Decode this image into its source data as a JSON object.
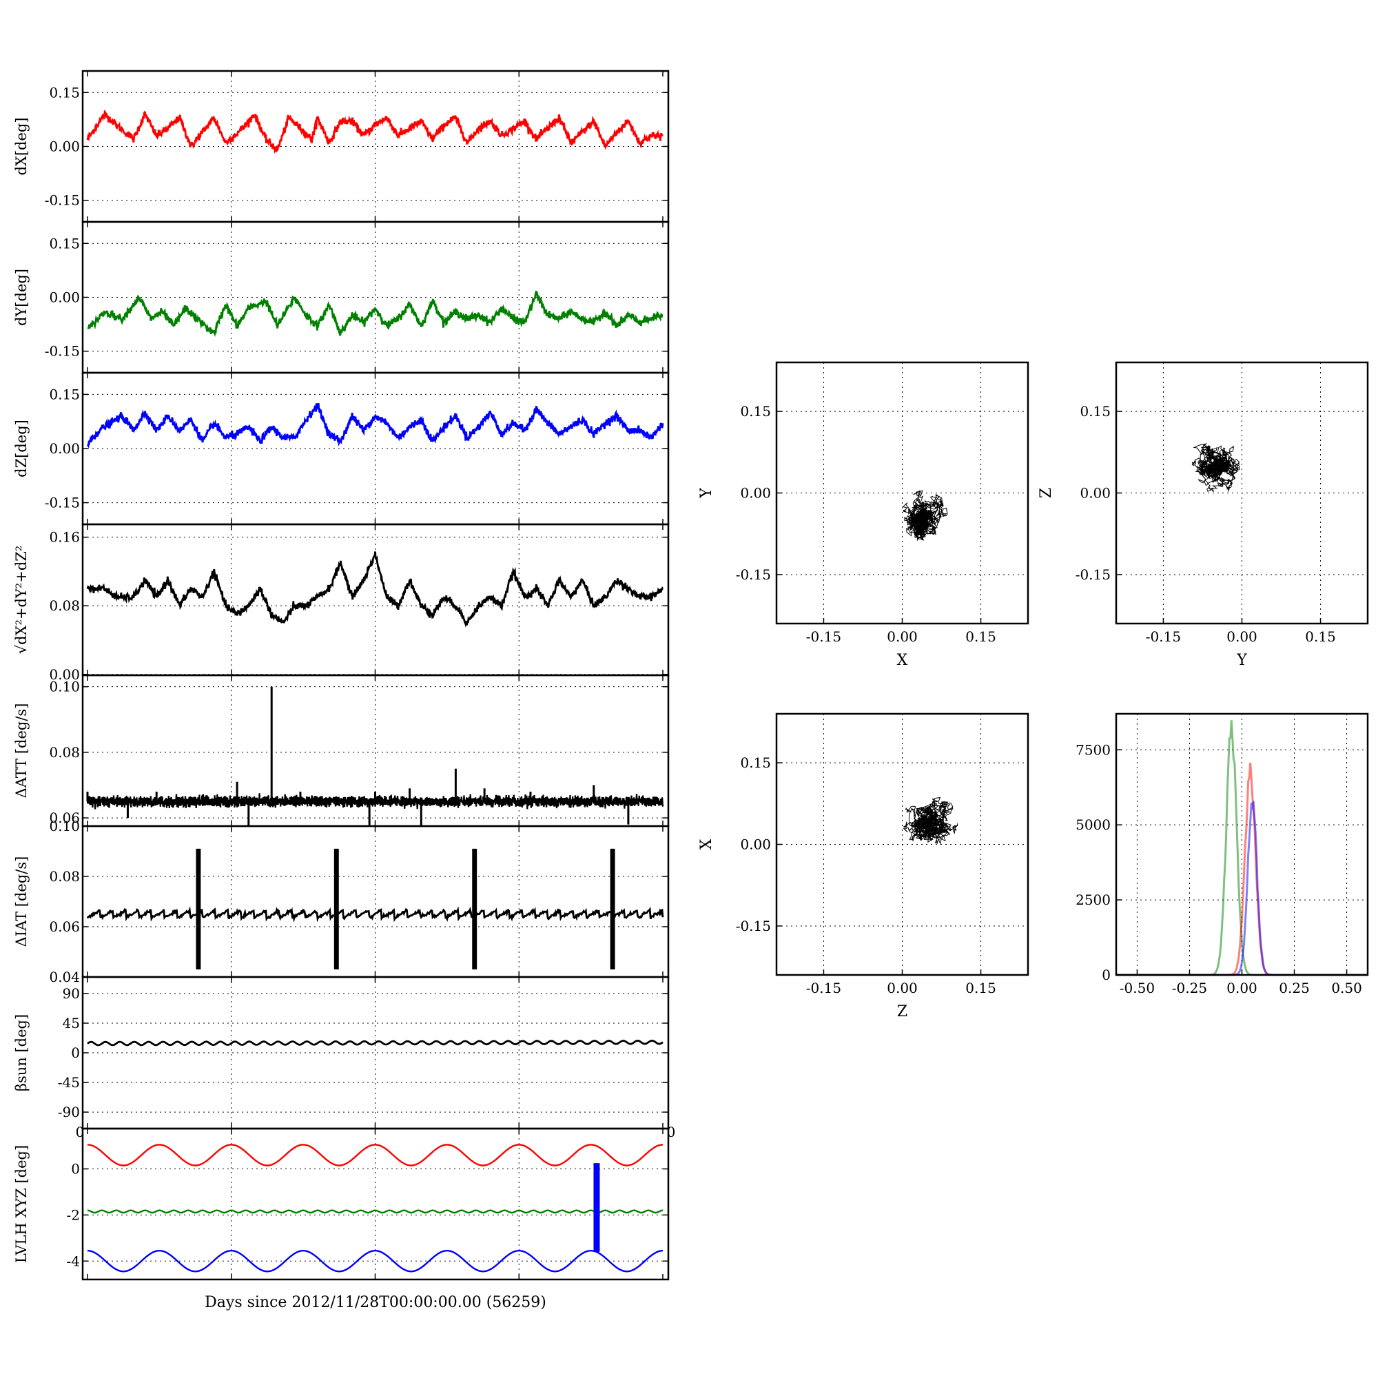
{
  "chart_data": [
    {
      "id": "dx",
      "type": "line",
      "ylabel": "dX[deg]",
      "ylim": [
        -0.21,
        0.21
      ],
      "yticks": [
        "0.15",
        "0.00",
        "-0.15"
      ],
      "ytickvals": [
        0.15,
        0.0,
        -0.15
      ],
      "color": "#ff0000",
      "x": [
        0,
        3,
        5,
        8,
        10,
        12,
        14,
        16,
        18,
        20,
        22,
        24,
        27,
        29,
        31,
        33,
        35,
        37,
        39,
        40,
        42,
        44,
        46,
        48,
        50,
        52,
        54,
        56,
        58,
        60,
        62,
        64,
        66,
        68,
        70,
        72,
        74,
        76,
        78,
        80,
        82,
        84,
        86,
        88,
        90,
        92,
        94,
        96,
        98,
        100
      ],
      "values": [
        0.02,
        0.09,
        0.06,
        0.02,
        0.09,
        0.03,
        0.05,
        0.08,
        0.0,
        0.04,
        0.08,
        0.01,
        0.05,
        0.09,
        0.02,
        -0.01,
        0.08,
        0.05,
        0.02,
        0.08,
        0.01,
        0.07,
        0.07,
        0.03,
        0.06,
        0.08,
        0.03,
        0.05,
        0.07,
        0.02,
        0.06,
        0.08,
        0.01,
        0.05,
        0.07,
        0.03,
        0.05,
        0.07,
        0.02,
        0.05,
        0.08,
        0.01,
        0.04,
        0.07,
        0.0,
        0.04,
        0.07,
        0.01,
        0.03,
        0.03
      ]
    },
    {
      "id": "dy",
      "type": "line",
      "ylabel": "dY[deg]",
      "ylim": [
        -0.21,
        0.21
      ],
      "yticks": [
        "0.15",
        "0.00",
        "-0.15"
      ],
      "ytickvals": [
        0.15,
        0.0,
        -0.15
      ],
      "color": "#008000",
      "x": [
        0,
        3,
        6,
        9,
        11,
        13,
        15,
        17,
        19,
        22,
        24,
        26,
        28,
        31,
        33,
        36,
        38,
        40,
        42,
        44,
        46,
        48,
        50,
        52,
        54,
        56,
        58,
        60,
        62,
        64,
        66,
        68,
        70,
        72,
        74,
        76,
        78,
        80,
        82,
        84,
        86,
        88,
        90,
        92,
        94,
        96,
        98,
        100
      ],
      "values": [
        -0.09,
        -0.04,
        -0.06,
        0.0,
        -0.06,
        -0.04,
        -0.08,
        -0.03,
        -0.06,
        -0.1,
        -0.02,
        -0.08,
        -0.03,
        -0.01,
        -0.08,
        0.0,
        -0.05,
        -0.08,
        -0.02,
        -0.1,
        -0.05,
        -0.07,
        -0.03,
        -0.08,
        -0.06,
        -0.02,
        -0.08,
        -0.01,
        -0.07,
        -0.04,
        -0.06,
        -0.05,
        -0.07,
        -0.03,
        -0.06,
        -0.07,
        0.01,
        -0.05,
        -0.06,
        -0.04,
        -0.06,
        -0.07,
        -0.04,
        -0.08,
        -0.05,
        -0.07,
        -0.06,
        -0.05
      ]
    },
    {
      "id": "dz",
      "type": "line",
      "ylabel": "dZ[deg]",
      "ylim": [
        -0.21,
        0.21
      ],
      "yticks": [
        "0.15",
        "0.00",
        "-0.15"
      ],
      "ytickvals": [
        0.15,
        0.0,
        -0.15
      ],
      "color": "#0000ff",
      "x": [
        0,
        2,
        4,
        6,
        8,
        10,
        12,
        14,
        16,
        18,
        20,
        22,
        24,
        26,
        28,
        30,
        32,
        34,
        36,
        38,
        40,
        42,
        44,
        46,
        48,
        50,
        52,
        54,
        56,
        58,
        60,
        62,
        64,
        66,
        68,
        70,
        72,
        74,
        76,
        78,
        80,
        82,
        84,
        86,
        88,
        90,
        92,
        94,
        96,
        98,
        100
      ],
      "values": [
        0.01,
        0.05,
        0.07,
        0.09,
        0.05,
        0.1,
        0.05,
        0.09,
        0.05,
        0.08,
        0.02,
        0.07,
        0.03,
        0.04,
        0.06,
        0.02,
        0.06,
        0.03,
        0.03,
        0.08,
        0.12,
        0.04,
        0.02,
        0.09,
        0.05,
        0.09,
        0.07,
        0.03,
        0.06,
        0.08,
        0.02,
        0.06,
        0.09,
        0.03,
        0.06,
        0.1,
        0.04,
        0.07,
        0.05,
        0.11,
        0.07,
        0.04,
        0.06,
        0.08,
        0.04,
        0.07,
        0.09,
        0.05,
        0.05,
        0.03,
        0.07
      ]
    },
    {
      "id": "r",
      "type": "line",
      "ylabel": "sqrt(dX^2+dY^2+dZ^2)",
      "ylim": [
        -0.001,
        0.175
      ],
      "yticks": [
        "0.16",
        "0.08",
        "0.00"
      ],
      "ytickvals": [
        0.16,
        0.08,
        0.0
      ],
      "color": "#000000",
      "x": [
        0,
        3,
        5,
        8,
        10,
        12,
        14,
        16,
        18,
        20,
        22,
        24,
        26,
        28,
        30,
        32,
        34,
        36,
        38,
        40,
        42,
        44,
        46,
        48,
        50,
        52,
        54,
        56,
        58,
        60,
        62,
        64,
        66,
        68,
        70,
        72,
        74,
        76,
        78,
        80,
        82,
        84,
        86,
        88,
        90,
        92,
        94,
        96,
        98,
        100
      ],
      "values": [
        0.1,
        0.1,
        0.09,
        0.09,
        0.11,
        0.09,
        0.11,
        0.08,
        0.1,
        0.09,
        0.12,
        0.08,
        0.07,
        0.08,
        0.1,
        0.07,
        0.06,
        0.08,
        0.08,
        0.09,
        0.1,
        0.13,
        0.09,
        0.11,
        0.14,
        0.09,
        0.08,
        0.11,
        0.08,
        0.07,
        0.09,
        0.08,
        0.06,
        0.08,
        0.09,
        0.08,
        0.12,
        0.09,
        0.1,
        0.08,
        0.11,
        0.09,
        0.11,
        0.08,
        0.09,
        0.11,
        0.1,
        0.09,
        0.09,
        0.1
      ]
    },
    {
      "id": "datt",
      "type": "line",
      "ylabel": "ΔATT [deg/s]",
      "ylim": [
        0.0575,
        0.1035
      ],
      "yticks": [
        "0.10",
        "0.08",
        "0.06"
      ],
      "ytickvals": [
        0.1,
        0.08,
        0.06
      ],
      "color": "#000000",
      "base": 0.065,
      "spikes": [
        [
          0,
          0.068
        ],
        [
          7,
          0.06
        ],
        [
          12,
          0.068
        ],
        [
          20,
          0.067
        ],
        [
          26,
          0.071
        ],
        [
          28,
          0.057
        ],
        [
          32,
          0.1
        ],
        [
          37,
          0.068
        ],
        [
          50,
          0.068
        ],
        [
          49,
          0.057
        ],
        [
          56,
          0.069
        ],
        [
          58,
          0.055
        ],
        [
          64,
          0.075
        ],
        [
          69,
          0.069
        ],
        [
          77,
          0.068
        ],
        [
          88,
          0.07
        ],
        [
          94,
          0.058
        ]
      ]
    },
    {
      "id": "diat",
      "type": "line",
      "ylabel": "ΔIAT [deg/s]",
      "ylim": [
        0.04,
        0.1
      ],
      "yticks": [
        "0.10",
        "0.08",
        "0.06",
        "0.04"
      ],
      "ytickvals": [
        0.1,
        0.08,
        0.06,
        0.04
      ],
      "color": "#000000",
      "bursts": [
        19,
        43,
        67,
        91
      ],
      "burst_low": 0.043,
      "burst_high": 0.091
    },
    {
      "id": "beta",
      "type": "line",
      "ylabel": "β_sun [deg]",
      "ylim": [
        -115,
        115
      ],
      "yticks": [
        "90",
        "45",
        "0",
        "-45",
        "-90"
      ],
      "ytickvals": [
        90,
        45,
        0,
        -45,
        -90
      ],
      "color": "#000000",
      "mean": 14,
      "amplitude": 2.5,
      "cycles": 40
    },
    {
      "id": "lvlh",
      "type": "line",
      "ylabel": "LVLH XYZ [deg]",
      "ylim": [
        -4.8,
        1.75
      ],
      "yticks": [
        "0",
        "-2",
        "-4"
      ],
      "ytickvals": [
        0,
        -2,
        -4
      ],
      "xlabel": "Days since 2012/11/28T00:00:00.00 (56259)",
      "series": [
        {
          "color": "#ff0000",
          "mean": 0.6,
          "amplitude": 0.45,
          "cycles": 8
        },
        {
          "color": "#008000",
          "mean": -1.85,
          "amplitude": 0.05,
          "cycles": 40
        },
        {
          "color": "#0000ff",
          "mean": -4.0,
          "amplitude": 0.45,
          "cycles": 8
        }
      ],
      "marker": {
        "x": 88.5,
        "from": 0.25,
        "to": -3.6,
        "color": "#0000ff"
      }
    },
    {
      "id": "sxy",
      "type": "scatter",
      "xlabel": "X",
      "ylabel": "Y",
      "xlim": [
        -0.24,
        0.24
      ],
      "ylim": [
        -0.24,
        0.24
      ],
      "xticks": [
        "-0.15",
        "0.00",
        "0.15"
      ],
      "yticks": [
        "0.15",
        "0.00",
        "-0.15"
      ],
      "center": [
        0.04,
        -0.05
      ],
      "spread": [
        0.035,
        0.03
      ]
    },
    {
      "id": "syz",
      "type": "scatter",
      "xlabel": "Y",
      "ylabel": "Z",
      "xlim": [
        -0.24,
        0.24
      ],
      "ylim": [
        -0.24,
        0.24
      ],
      "xticks": [
        "-0.15",
        "0.00",
        "0.15"
      ],
      "yticks": [
        "0.15",
        "0.00",
        "-0.15"
      ],
      "center": [
        -0.05,
        0.05
      ],
      "spread": [
        0.028,
        0.04
      ]
    },
    {
      "id": "szx",
      "type": "scatter",
      "xlabel": "Z",
      "ylabel": "X",
      "xlim": [
        -0.24,
        0.24
      ],
      "ylim": [
        -0.24,
        0.24
      ],
      "xticks": [
        "-0.15",
        "0.00",
        "0.15"
      ],
      "yticks": [
        "0.15",
        "0.00",
        "-0.15"
      ],
      "center": [
        0.05,
        0.04
      ],
      "spread": [
        0.035,
        0.03
      ]
    },
    {
      "id": "hist",
      "type": "area",
      "xlim": [
        -0.6,
        0.6
      ],
      "ylim": [
        0,
        8700
      ],
      "xticks": [
        "-0.50",
        "-0.25",
        "0.00",
        "0.25",
        "0.50"
      ],
      "xtickvals": [
        -0.5,
        -0.25,
        0,
        0.25,
        0.5
      ],
      "yticks": [
        "7500",
        "5000",
        "2500",
        "0"
      ],
      "ytickvals": [
        7500,
        5000,
        2500,
        0
      ],
      "series": [
        {
          "color": "#008000",
          "mu": -0.05,
          "sigma": 0.025,
          "peak": 8300
        },
        {
          "color": "#ff0000",
          "mu": 0.04,
          "sigma": 0.025,
          "peak": 6900
        },
        {
          "color": "#0000ff",
          "mu": 0.05,
          "sigma": 0.022,
          "peak": 5800
        }
      ]
    }
  ],
  "left_xaxis": {
    "xlim": [
      0,
      100
    ],
    "gridx": [
      25,
      50,
      75
    ],
    "xticks_partial": [
      "0",
      "0"
    ]
  }
}
